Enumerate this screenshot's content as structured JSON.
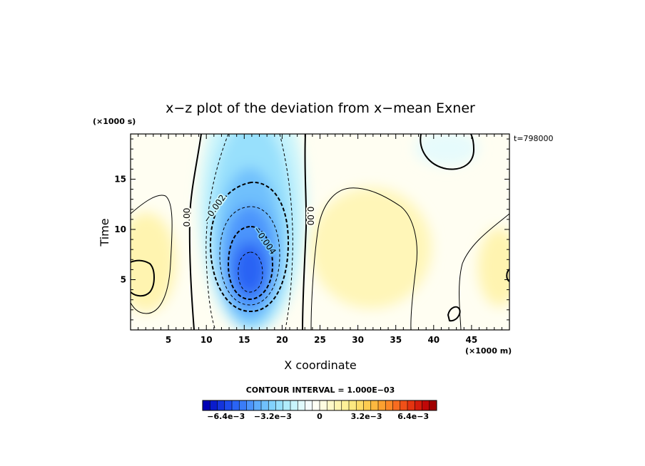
{
  "chart_data": {
    "type": "contour",
    "title": "x−z plot of the deviation from x−mean Exner",
    "xlabel": "X coordinate",
    "ylabel": "Time",
    "x_unit": "(×1000 m)",
    "y_unit": "(×1000 s)",
    "time_stamp": "t=798000",
    "xlim": [
      0,
      50
    ],
    "ylim": [
      0,
      19.5
    ],
    "xticks": [
      5,
      10,
      15,
      20,
      25,
      30,
      35,
      40,
      45
    ],
    "yticks": [
      5,
      10,
      15
    ],
    "contour_interval_text": "CONTOUR INTERVAL = 1.000E−03",
    "contour_interval": 0.001,
    "contour_labels": [
      {
        "text": "0.00",
        "x": 7.8,
        "y": 11.5,
        "rotation": -90
      },
      {
        "text": "−0.002",
        "x": 11.5,
        "y": 12.2,
        "rotation": -55
      },
      {
        "text": "−0.004",
        "x": 16.8,
        "y": 8.8,
        "rotation": 55
      },
      {
        "text": "0.00",
        "x": 23.3,
        "y": 11.8,
        "rotation": 90
      }
    ],
    "features": [
      {
        "name": "negative-core",
        "x": 16.0,
        "y": 6.0,
        "min_value": -0.006
      },
      {
        "name": "positive-left",
        "x": 1.8,
        "y": 5.0,
        "max_value": 0.001
      },
      {
        "name": "positive-right",
        "x": 30.0,
        "y": 8.5,
        "max_value": 0.0015
      },
      {
        "name": "negative-top-right",
        "x": 42.0,
        "y": 18.5,
        "min_value": -0.0008
      }
    ],
    "colorbar": {
      "tick_labels": [
        "−6.4e−3",
        "−3.2e−3",
        "0",
        "3.2e−3",
        "6.4e−3"
      ],
      "tick_values": [
        -0.0064,
        -0.0032,
        0,
        0.0032,
        0.0064
      ],
      "range": [
        -0.008,
        0.008
      ],
      "colors": [
        "#0000b4",
        "#0a1ccc",
        "#1434dc",
        "#1e4cec",
        "#2a64f4",
        "#3a7cf8",
        "#4c94fc",
        "#5eacfc",
        "#70c0fc",
        "#82d2fc",
        "#98e0fc",
        "#b0ecfc",
        "#c8f4fc",
        "#e0fafc",
        "#f4fcfc",
        "#fffff4",
        "#fffce0",
        "#fff8c8",
        "#fff4b0",
        "#fff098",
        "#fce880",
        "#fcdc68",
        "#fccc50",
        "#fcb840",
        "#fca030",
        "#fc8828",
        "#f86c20",
        "#f05018",
        "#e43410",
        "#d41c0c",
        "#c00808",
        "#a00000"
      ]
    }
  }
}
